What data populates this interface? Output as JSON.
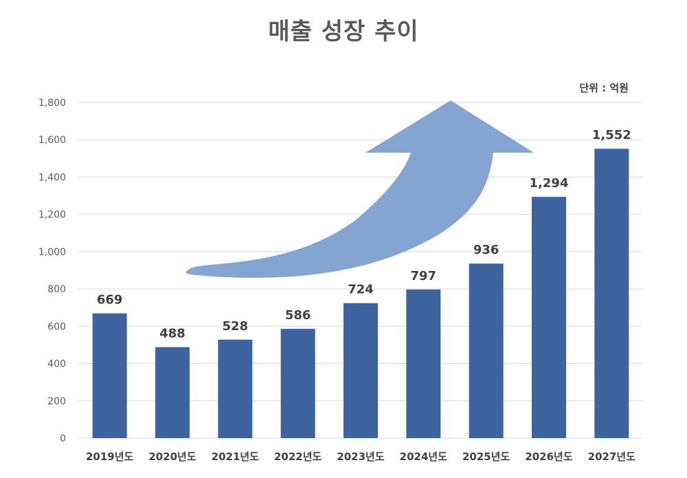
{
  "chart_data": {
    "type": "bar",
    "title": "매출 성장 추이",
    "unit_note": "단위 : 억원",
    "categories": [
      "2019년도",
      "2020년도",
      "2021년도",
      "2022년도",
      "2023년도",
      "2024년도",
      "2025년도",
      "2026년도",
      "2027년도"
    ],
    "values": [
      669,
      488,
      528,
      586,
      724,
      797,
      936,
      1294,
      1552
    ],
    "data_labels": [
      "669",
      "488",
      "528",
      "586",
      "724",
      "797",
      "936",
      "1,294",
      "1,552"
    ],
    "y_ticks": [
      "0",
      "200",
      "400",
      "600",
      "800",
      "1,000",
      "1,200",
      "1,400",
      "1,600",
      "1,800"
    ],
    "ylim": [
      0,
      1800
    ],
    "grid": true,
    "legend": "none",
    "annotation": "growth-arrow",
    "colors": {
      "bar": "#3e64a0",
      "arrow": "#84a4d1"
    }
  }
}
